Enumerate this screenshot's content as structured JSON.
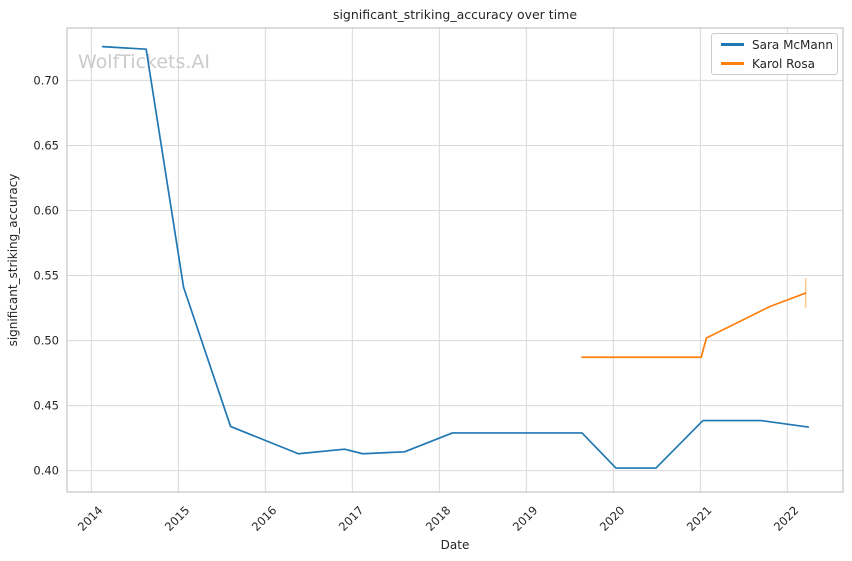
{
  "watermark": {
    "text": "WolfTickets.AI"
  },
  "chart_data": {
    "type": "line",
    "title": "significant_striking_accuracy over time",
    "xlabel": "Date",
    "ylabel": "significant_striking_accuracy",
    "grid": true,
    "legend_position": "upper right",
    "x_ticks": [
      2014,
      2015,
      2016,
      2017,
      2018,
      2019,
      2020,
      2021,
      2022
    ],
    "y_ticks": [
      0.4,
      0.45,
      0.5,
      0.55,
      0.6,
      0.65,
      0.7
    ],
    "xlim": [
      2013.72,
      2022.64
    ],
    "ylim": [
      0.3836,
      0.7403
    ],
    "series": [
      {
        "name": "Sara McMann",
        "color": "#1f77b4",
        "x": [
          2014.13,
          2014.63,
          2015.06,
          2015.6,
          2016.38,
          2016.91,
          2017.12,
          2017.6,
          2018.15,
          2019.64,
          2020.03,
          2020.49,
          2021.03,
          2021.7,
          2022.24
        ],
        "y": [
          0.726,
          0.724,
          0.541,
          0.434,
          0.413,
          0.4165,
          0.413,
          0.4145,
          0.429,
          0.429,
          0.402,
          0.402,
          0.4385,
          0.4385,
          0.4335
        ]
      },
      {
        "name": "Karol Rosa",
        "color": "#ff7f0e",
        "x": [
          2019.64,
          2021.01,
          2021.07,
          2021.8,
          2022.21
        ],
        "y": [
          0.4872,
          0.4872,
          0.502,
          0.5262,
          0.5365
        ],
        "error_bar": {
          "x": 2022.21,
          "y_low": 0.525,
          "y_high": 0.548
        }
      }
    ],
    "style": {
      "grid_color": "#d9d9d9",
      "spine_color": "#c4c4c4",
      "text_color": "#262626",
      "error_bar_opacity": 0.45
    }
  }
}
